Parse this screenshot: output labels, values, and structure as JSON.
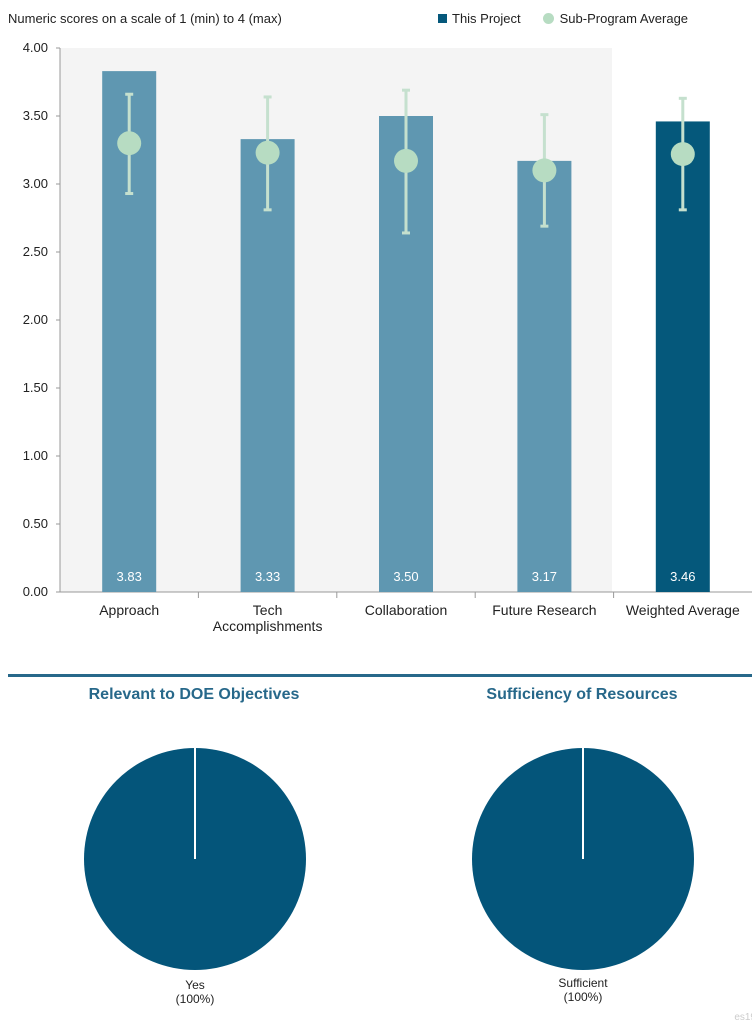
{
  "subtitle": "Numeric scores on a scale of 1 (min) to 4 (max)",
  "legend": {
    "this_project": "This Project",
    "sub_program": "Sub-Program Average"
  },
  "colors": {
    "bar": "#5f97b1",
    "bar_highlight": "#05587b",
    "dot": "#b7dcc2",
    "errorbar": "#c5e0ce",
    "grid_bg": "#f4f4f4",
    "pie": "#04557a",
    "heading": "#27688a"
  },
  "chart_data": [
    {
      "type": "bar",
      "categories": [
        "Approach",
        "Tech Accomplishments",
        "Collaboration",
        "Future Research",
        "Weighted Average"
      ],
      "category_lines": [
        [
          "Approach"
        ],
        [
          "Tech",
          "Accomplishments"
        ],
        [
          "Collaboration"
        ],
        [
          "Future Research"
        ],
        [
          "Weighted Average"
        ]
      ],
      "series": [
        {
          "name": "This Project",
          "values": [
            3.83,
            3.33,
            3.5,
            3.17,
            3.46
          ]
        },
        {
          "name": "Sub-Program Average",
          "values": [
            3.3,
            3.23,
            3.17,
            3.1,
            3.22
          ],
          "error_low": [
            2.93,
            2.81,
            2.64,
            2.69,
            2.81
          ],
          "error_high": [
            3.66,
            3.64,
            3.69,
            3.51,
            3.63
          ]
        }
      ],
      "value_labels": [
        "3.83",
        "3.33",
        "3.50",
        "3.17",
        "3.46"
      ],
      "highlight_index": 4,
      "ylim": [
        0,
        4
      ],
      "yticks": [
        "0.00",
        "0.50",
        "1.00",
        "1.50",
        "2.00",
        "2.50",
        "3.00",
        "3.50",
        "4.00"
      ],
      "legend_position": "top-right"
    },
    {
      "type": "pie",
      "title": "Relevant to DOE Objectives",
      "labels": [
        "Yes"
      ],
      "values": [
        100
      ],
      "value_labels": [
        "(100%)"
      ]
    },
    {
      "type": "pie",
      "title": "Sufficiency of Resources",
      "labels": [
        "Sufficient"
      ],
      "values": [
        100
      ],
      "value_labels": [
        "(100%)"
      ]
    }
  ],
  "corner_text": "es19"
}
